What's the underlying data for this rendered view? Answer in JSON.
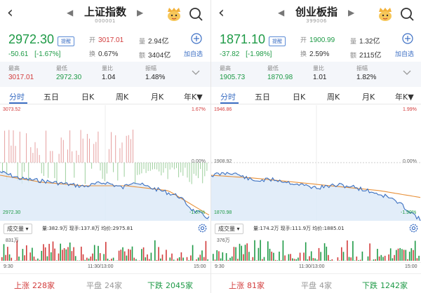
{
  "panels": [
    {
      "title": "上证指数",
      "code": "000001",
      "price": "2972.30",
      "badge": "提醒",
      "change": "-50.61",
      "change_pct": "[-1.67%]",
      "quote": {
        "open_label": "开",
        "open": "3017.01",
        "vol_label": "量",
        "vol": "2.94亿",
        "turnover_label": "换",
        "turnover": "0.67%",
        "amount_label": "额",
        "amount": "3404亿"
      },
      "add_label": "加自选",
      "stats": [
        {
          "label": "最高",
          "value": "3017.01"
        },
        {
          "label": "最低",
          "value": "2972.30"
        },
        {
          "label": "量比",
          "value": "1.04"
        },
        {
          "label": "振幅",
          "value": "1.48%"
        }
      ],
      "tabs": [
        "分时",
        "五日",
        "日K",
        "周K",
        "月K",
        "年K▼"
      ],
      "chart_labels": {
        "top_left": "3073.52",
        "top_right": "1.67%",
        "mid_right": "0.00%",
        "bottom_left": "2972.30",
        "bottom_right": "-1.67%"
      },
      "volume_bar": {
        "selector": "成交量 ▾",
        "info": "量:382.9万  现手:137.8万  均价:2975.81",
        "max": "831万"
      },
      "times": [
        "9:30",
        "11:30/13:00",
        "15:00"
      ],
      "footer": {
        "up_label": "上涨",
        "up": "228家",
        "flat_label": "平盘",
        "flat": "24家",
        "down_label": "下跌",
        "down": "2045家"
      }
    },
    {
      "title": "创业板指",
      "code": "399006",
      "price": "1871.10",
      "badge": "提醒",
      "change": "-37.82",
      "change_pct": "[-1.98%]",
      "quote": {
        "open_label": "开",
        "open": "1900.99",
        "vol_label": "量",
        "vol": "1.32亿",
        "turnover_label": "换",
        "turnover": "2.59%",
        "amount_label": "额",
        "amount": "2115亿"
      },
      "add_label": "加自选",
      "stats": [
        {
          "label": "最高",
          "value": "1905.73"
        },
        {
          "label": "最低",
          "value": "1870.98"
        },
        {
          "label": "量比",
          "value": "1.01"
        },
        {
          "label": "振幅",
          "value": "1.82%"
        }
      ],
      "tabs": [
        "分时",
        "五日",
        "日K",
        "周K",
        "月K",
        "年K▼"
      ],
      "chart_labels": {
        "top_left": "1946.86",
        "top_right": "1.99%",
        "mid_left": "1908.92",
        "mid_right": "0.00%",
        "bottom_left": "1870.98",
        "bottom_right": "-1.99%"
      },
      "volume_bar": {
        "selector": "成交量 ▾",
        "info": "量:174.2万  现手:111.9万  均价:1885.01",
        "max": "376万"
      },
      "times": [
        "9:30",
        "11:30/13:00",
        "15:00"
      ],
      "footer": {
        "up_label": "上涨",
        "up": "81家",
        "flat_label": "平盘",
        "flat": "4家",
        "down_label": "下跌",
        "down": "1242家"
      }
    }
  ],
  "colors": {
    "up": "#d23b3b",
    "down": "#1e9a46",
    "accent": "#3c6fc4",
    "price_line": "#3a6fc0",
    "avg_line": "#e8913a"
  },
  "icons": [
    "back-icon",
    "prev-icon",
    "next-icon",
    "mascot-icon",
    "search-icon",
    "add-icon",
    "chevron-down-icon",
    "gear-icon"
  ]
}
